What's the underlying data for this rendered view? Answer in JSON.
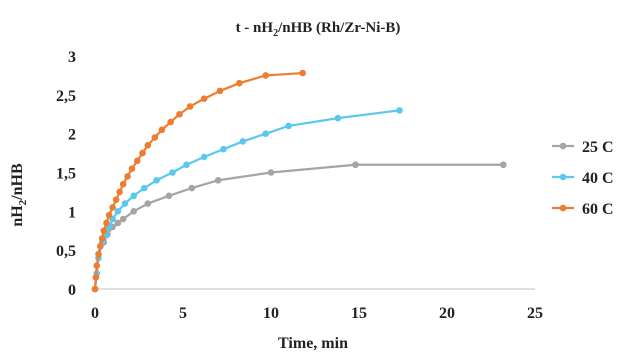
{
  "chart_data": {
    "type": "line",
    "title_parts": [
      "t - nH",
      "2",
      "/nHB (Rh/Zr-Ni-B)"
    ],
    "xlabel": "Time, min",
    "ylabel_parts": [
      "nH",
      "2",
      "/nHB"
    ],
    "xlim": [
      0,
      25
    ],
    "ylim": [
      0,
      3
    ],
    "x_ticks": [
      "0",
      "5",
      "10",
      "15",
      "20",
      "25"
    ],
    "y_ticks": [
      "0",
      "0,5",
      "1",
      "1,5",
      "2",
      "2,5",
      "3"
    ],
    "grid": false,
    "legend_position": "right",
    "series": [
      {
        "name": "25 C",
        "color": "#a5a5a5",
        "x": [
          0,
          0.1,
          0.2,
          0.3,
          0.5,
          0.7,
          1.0,
          1.3,
          1.6,
          2.2,
          3.0,
          4.2,
          5.5,
          7.0,
          10.0,
          14.8,
          23.2
        ],
        "y": [
          0,
          0.2,
          0.4,
          0.55,
          0.6,
          0.7,
          0.8,
          0.85,
          0.9,
          1.0,
          1.1,
          1.2,
          1.3,
          1.4,
          1.5,
          1.6,
          1.6
        ]
      },
      {
        "name": "40 C",
        "color": "#5bc8f0",
        "x": [
          0,
          0.1,
          0.2,
          0.4,
          0.6,
          0.8,
          1.0,
          1.3,
          1.7,
          2.2,
          2.8,
          3.5,
          4.4,
          5.2,
          6.2,
          7.3,
          8.4,
          9.7,
          11.0,
          13.8,
          17.3
        ],
        "y": [
          0,
          0.2,
          0.4,
          0.6,
          0.7,
          0.8,
          0.9,
          1.0,
          1.1,
          1.2,
          1.3,
          1.4,
          1.5,
          1.6,
          1.7,
          1.8,
          1.9,
          2.0,
          2.1,
          2.2,
          2.3
        ]
      },
      {
        "name": "60 C",
        "color": "#ed7d31",
        "x": [
          0,
          0.05,
          0.1,
          0.2,
          0.3,
          0.4,
          0.5,
          0.65,
          0.8,
          1.0,
          1.2,
          1.4,
          1.6,
          1.85,
          2.1,
          2.4,
          2.7,
          3.0,
          3.4,
          3.8,
          4.3,
          4.8,
          5.4,
          6.2,
          7.1,
          8.2,
          9.7,
          11.8
        ],
        "y": [
          0,
          0.15,
          0.3,
          0.45,
          0.55,
          0.65,
          0.75,
          0.85,
          0.95,
          1.05,
          1.15,
          1.25,
          1.35,
          1.45,
          1.55,
          1.65,
          1.75,
          1.85,
          1.95,
          2.05,
          2.15,
          2.25,
          2.35,
          2.45,
          2.55,
          2.65,
          2.75,
          2.78
        ]
      }
    ]
  }
}
